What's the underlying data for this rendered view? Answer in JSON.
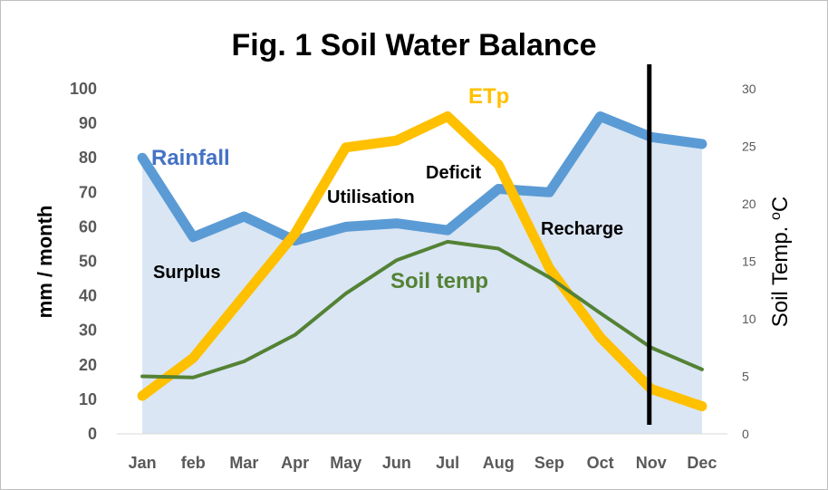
{
  "chart_data": {
    "type": "line",
    "title": "Fig. 1 Soil Water Balance",
    "categories": [
      "Jan",
      "feb",
      "Mar",
      "Apr",
      "May",
      "Jun",
      "Jul",
      "Aug",
      "Sep",
      "Oct",
      "Nov",
      "Dec"
    ],
    "ylabel": "mm / month",
    "ylim": [
      0,
      100
    ],
    "yticks": [
      "0",
      "10",
      "20",
      "30",
      "40",
      "50",
      "60",
      "70",
      "80",
      "90",
      "100"
    ],
    "y2label": "Soil Temp. ",
    "y2label_unit": "C",
    "y2label_degree": "o",
    "y2lim": [
      0,
      30
    ],
    "y2ticks": [
      "0",
      "5",
      "10",
      "15",
      "20",
      "25",
      "30"
    ],
    "grid": false,
    "series": [
      {
        "name": "Rainfall",
        "axis": "left",
        "color": "#5b9bd5",
        "values": [
          80,
          57,
          63,
          56,
          60,
          61,
          59,
          71,
          70,
          92,
          86,
          84
        ]
      },
      {
        "name": "ETp",
        "axis": "left",
        "color": "#ffc000",
        "values": [
          11,
          22,
          40,
          58,
          83,
          85,
          92,
          78,
          48,
          28,
          13,
          8
        ]
      },
      {
        "name": "Soil temp",
        "axis": "right",
        "color": "#548235",
        "values": [
          5,
          4.9,
          6.3,
          8.6,
          12.2,
          15.1,
          16.7,
          16.1,
          13.6,
          10.5,
          7.5,
          5.6
        ]
      }
    ],
    "annotations": [
      "Surplus",
      "Utilisation",
      "Deficit",
      "Recharge"
    ],
    "marker_line": {
      "label": "",
      "position_x": 10,
      "color": "#000000"
    },
    "shaded_area": {
      "under_series": "Rainfall",
      "color": "#dae6f4"
    }
  }
}
